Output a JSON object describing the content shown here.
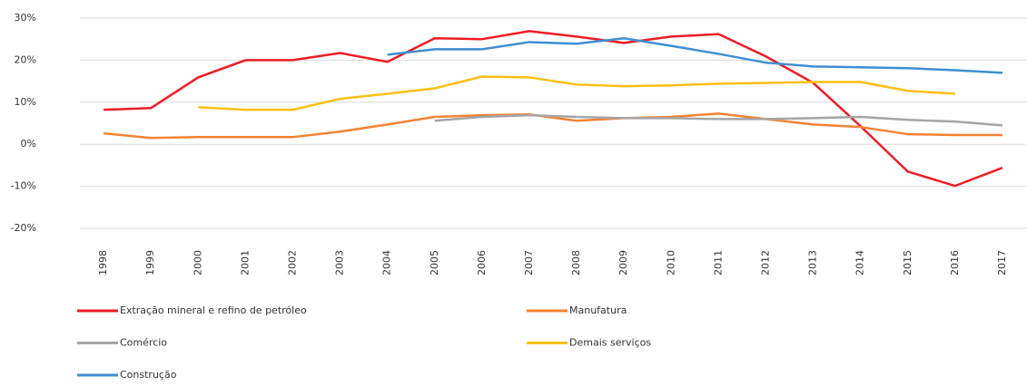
{
  "chart_data": {
    "type": "line",
    "categories": [
      "1998",
      "1999",
      "2000",
      "2001",
      "2002",
      "2003",
      "2004",
      "2005",
      "2006",
      "2007",
      "2008",
      "2009",
      "2010",
      "2011",
      "2012",
      "2013",
      "2014",
      "2015",
      "2016",
      "2017"
    ],
    "series": [
      {
        "name": "Extração mineral e refino de petróleo",
        "color": "#ee1c25",
        "values": [
          8.2,
          8.6,
          15.9,
          20,
          20,
          21.7,
          19.6,
          25.2,
          25,
          26.9,
          25.6,
          24.1,
          25.6,
          26.2,
          20.9,
          14.6,
          4.3,
          -6.5,
          -9.9,
          -5.6
        ]
      },
      {
        "name": "Manufatura",
        "color": "#f58233",
        "values": [
          2.6,
          1.5,
          1.7,
          1.7,
          1.7,
          3,
          4.7,
          6.5,
          6.9,
          7.1,
          5.6,
          6.2,
          6.5,
          7.3,
          6,
          4.7,
          4.1,
          2.4,
          2.2,
          2.2
        ]
      },
      {
        "name": "Comércio",
        "color": "#a5a5a5",
        "values": [
          null,
          null,
          null,
          null,
          null,
          null,
          null,
          5.6,
          6.5,
          6.9,
          6.5,
          6.2,
          6.2,
          6,
          6,
          6.2,
          6.5,
          5.8,
          5.4,
          4.5
        ]
      },
      {
        "name": "Demais serviços",
        "color": "#fdbf13",
        "values": [
          null,
          null,
          8.8,
          8.2,
          8.2,
          10.8,
          12,
          13.3,
          16.1,
          15.9,
          14.2,
          13.8,
          14,
          14.4,
          14.6,
          14.8,
          14.8,
          12.7,
          12,
          null
        ]
      },
      {
        "name": "Construção",
        "color": "#3f8fd2",
        "values": [
          null,
          null,
          null,
          null,
          null,
          null,
          21.3,
          22.6,
          22.6,
          24.3,
          23.9,
          25.2,
          23.4,
          21.5,
          19.4,
          18.5,
          18.3,
          18.1,
          17.6,
          17
        ]
      }
    ],
    "ylim": [
      -20,
      30
    ],
    "yticks": [
      {
        "value": -20,
        "label": "-20%"
      },
      {
        "value": -10,
        "label": "-10%"
      },
      {
        "value": 0,
        "label": "0%"
      },
      {
        "value": 10,
        "label": "10%"
      },
      {
        "value": 20,
        "label": "20%"
      },
      {
        "value": 30,
        "label": "30%"
      }
    ],
    "grid": true
  }
}
